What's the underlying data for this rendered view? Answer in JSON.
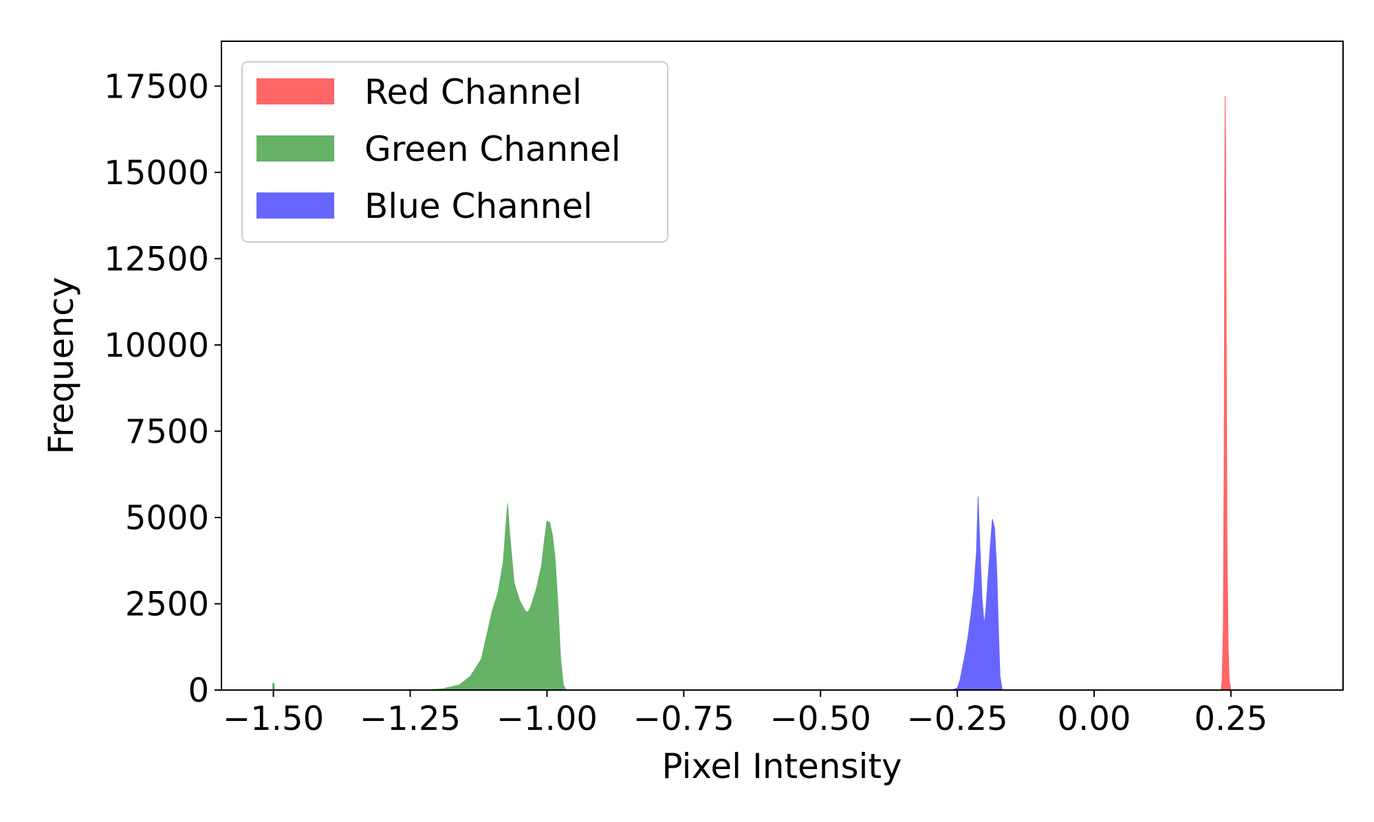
{
  "chart_data": {
    "type": "histogram",
    "title": "",
    "xlabel": "Pixel Intensity",
    "ylabel": "Frequency",
    "xlim": [
      -1.595,
      0.455
    ],
    "ylim": [
      0,
      18800
    ],
    "xticks": [
      -1.5,
      -1.25,
      -1.0,
      -0.75,
      -0.5,
      -0.25,
      0.0,
      0.25
    ],
    "xtick_labels": [
      "−1.50",
      "−1.25",
      "−1.00",
      "−0.75",
      "−0.50",
      "−0.25",
      "0.00",
      "0.25"
    ],
    "yticks": [
      0,
      2500,
      5000,
      7500,
      10000,
      12500,
      15000,
      17500
    ],
    "ytick_labels": [
      "0",
      "2500",
      "5000",
      "7500",
      "10000",
      "12500",
      "15000",
      "17500"
    ],
    "grid": false,
    "legend": {
      "position": "upper-left",
      "entries": [
        "Red Channel",
        "Green Channel",
        "Blue Channel"
      ]
    },
    "series": [
      {
        "name": "Red Channel",
        "color": "#ff6666",
        "points": [
          [
            0.232,
            0
          ],
          [
            0.234,
            300
          ],
          [
            0.236,
            1800
          ],
          [
            0.2375,
            6500
          ],
          [
            0.2385,
            12800
          ],
          [
            0.239,
            15500
          ],
          [
            0.2395,
            17200
          ],
          [
            0.2405,
            15400
          ],
          [
            0.2415,
            10500
          ],
          [
            0.243,
            4200
          ],
          [
            0.245,
            1300
          ],
          [
            0.247,
            300
          ],
          [
            0.25,
            0
          ]
        ]
      },
      {
        "name": "Green Channel",
        "color": "#66b266",
        "points": [
          [
            -1.22,
            0
          ],
          [
            -1.19,
            40
          ],
          [
            -1.16,
            150
          ],
          [
            -1.14,
            400
          ],
          [
            -1.12,
            900
          ],
          [
            -1.11,
            1600
          ],
          [
            -1.1,
            2300
          ],
          [
            -1.09,
            2800
          ],
          [
            -1.08,
            3700
          ],
          [
            -1.075,
            4800
          ],
          [
            -1.072,
            5400
          ],
          [
            -1.068,
            4500
          ],
          [
            -1.06,
            3100
          ],
          [
            -1.05,
            2600
          ],
          [
            -1.04,
            2300
          ],
          [
            -1.035,
            2250
          ],
          [
            -1.03,
            2400
          ],
          [
            -1.02,
            2900
          ],
          [
            -1.01,
            3600
          ],
          [
            -1.005,
            4300
          ],
          [
            -1.0,
            4900
          ],
          [
            -0.995,
            4850
          ],
          [
            -0.99,
            4500
          ],
          [
            -0.985,
            3800
          ],
          [
            -0.98,
            2500
          ],
          [
            -0.975,
            900
          ],
          [
            -0.97,
            150
          ],
          [
            -0.965,
            0
          ]
        ]
      },
      {
        "name": "Blue Channel",
        "color": "#6666ff",
        "points": [
          [
            -0.26,
            0
          ],
          [
            -0.25,
            60
          ],
          [
            -0.245,
            300
          ],
          [
            -0.24,
            700
          ],
          [
            -0.235,
            1100
          ],
          [
            -0.23,
            1600
          ],
          [
            -0.225,
            2200
          ],
          [
            -0.22,
            2900
          ],
          [
            -0.215,
            4000
          ],
          [
            -0.212,
            5600
          ],
          [
            -0.209,
            4300
          ],
          [
            -0.205,
            2700
          ],
          [
            -0.201,
            1900
          ],
          [
            -0.198,
            2300
          ],
          [
            -0.195,
            3000
          ],
          [
            -0.19,
            4100
          ],
          [
            -0.186,
            4950
          ],
          [
            -0.182,
            4700
          ],
          [
            -0.178,
            3500
          ],
          [
            -0.175,
            1800
          ],
          [
            -0.172,
            400
          ],
          [
            -0.168,
            0
          ]
        ]
      },
      {
        "name": "",
        "color": "#66b266",
        "points": [
          [
            -1.502,
            0
          ],
          [
            -1.501,
            200
          ],
          [
            -1.499,
            200
          ],
          [
            -1.498,
            0
          ]
        ]
      }
    ]
  }
}
